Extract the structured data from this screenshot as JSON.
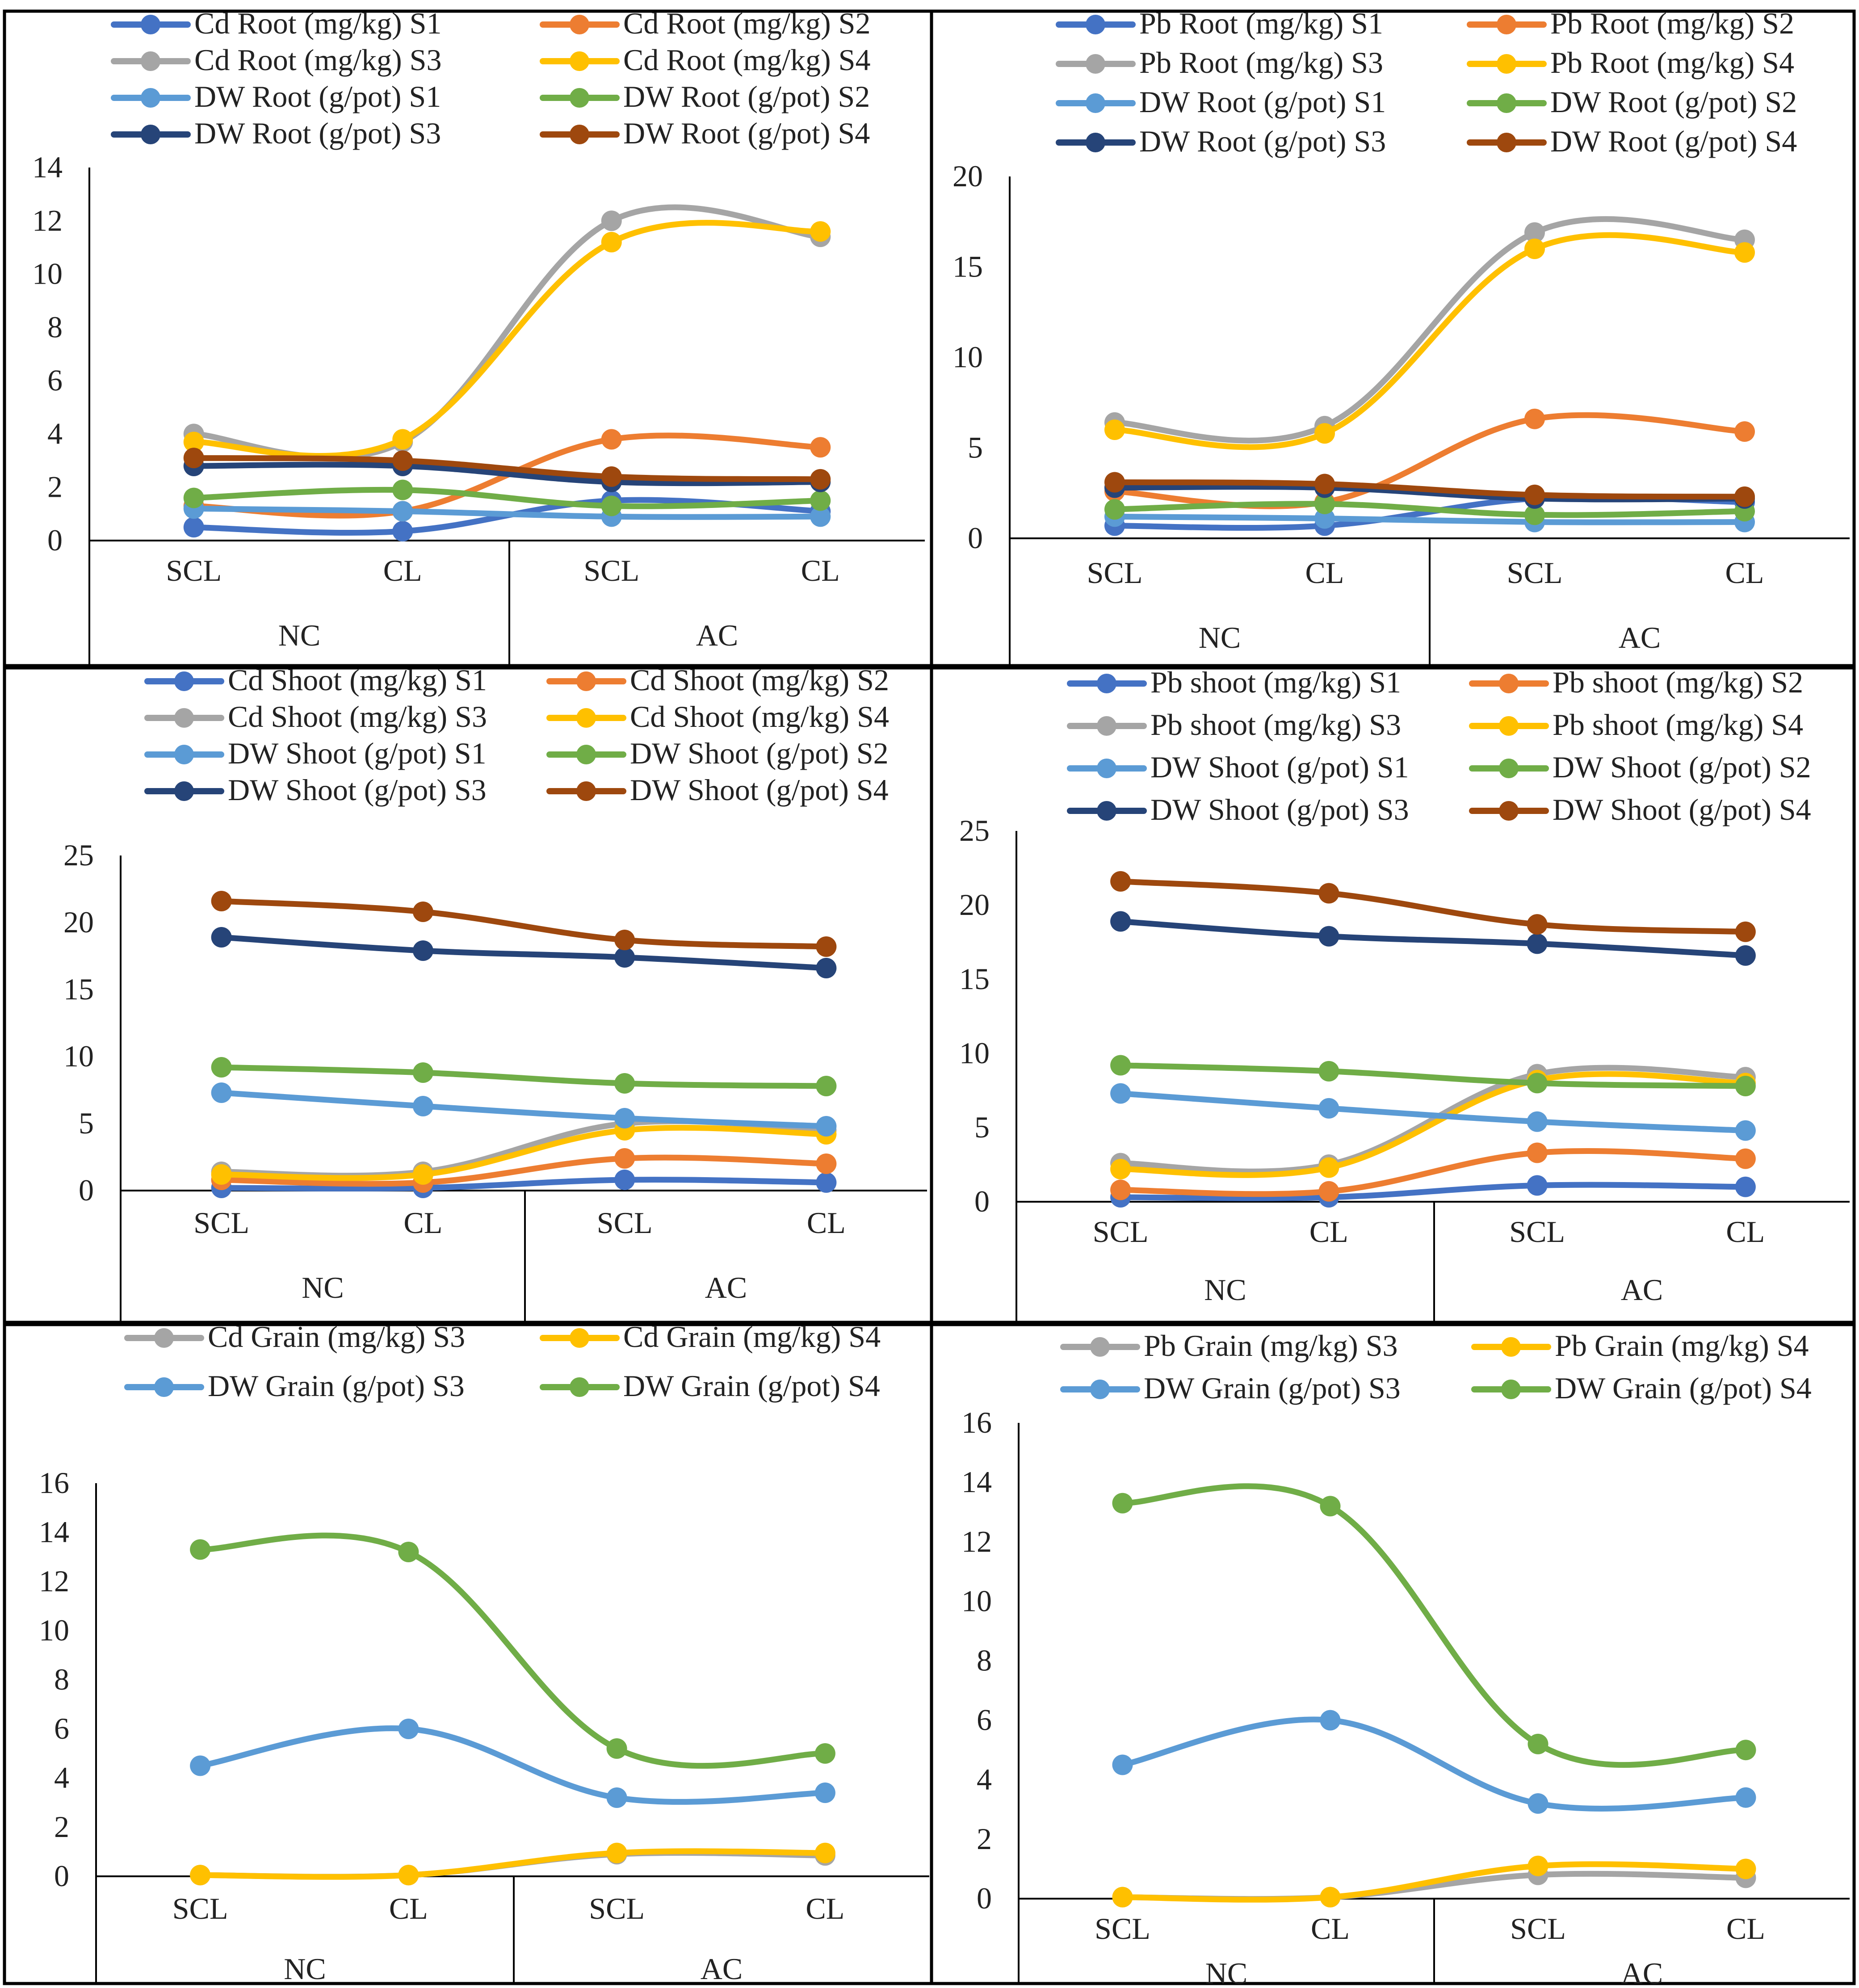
{
  "colors": {
    "S1": "#4472C4",
    "S2": "#ED7D31",
    "S3": "#A5A5A5",
    "S4": "#FFC000",
    "DW_S1": "#5B9BD5",
    "DW_S2": "#70AD47",
    "DW_S3": "#264478",
    "DW_S4": "#9E480E",
    "axis": "#000000",
    "panel_border": "#000000"
  },
  "chart_data": [
    {
      "type": "line",
      "id": "cd-root",
      "categories": [
        "SCL",
        "CL",
        "SCL",
        "CL"
      ],
      "groups": [
        "NC",
        "AC"
      ],
      "y_ticks": [
        0,
        2,
        4,
        6,
        8,
        10,
        12,
        14
      ],
      "ylim": [
        0,
        14
      ],
      "legend_position": "top",
      "series": [
        {
          "name": "Cd Root (mg/kg) S1",
          "color_key": "S1",
          "values": [
            0.5,
            0.35,
            1.5,
            1.1
          ]
        },
        {
          "name": "Cd Root (mg/kg) S2",
          "color_key": "S2",
          "values": [
            1.3,
            1.1,
            3.8,
            3.5
          ]
        },
        {
          "name": "Cd Root (mg/kg) S3",
          "color_key": "S3",
          "values": [
            4.0,
            3.7,
            12.0,
            11.4
          ]
        },
        {
          "name": "Cd Root (mg/kg) S4",
          "color_key": "S4",
          "values": [
            3.7,
            3.8,
            11.2,
            11.6
          ]
        },
        {
          "name": "DW Root (g/pot) S1",
          "color_key": "DW_S1",
          "values": [
            1.2,
            1.1,
            0.9,
            0.9
          ]
        },
        {
          "name": "DW Root (g/pot) S2",
          "color_key": "DW_S2",
          "values": [
            1.6,
            1.9,
            1.3,
            1.5
          ]
        },
        {
          "name": "DW Root (g/pot) S3",
          "color_key": "DW_S3",
          "values": [
            2.8,
            2.8,
            2.2,
            2.2
          ]
        },
        {
          "name": "DW Root (g/pot) S4",
          "color_key": "DW_S4",
          "values": [
            3.1,
            3.0,
            2.4,
            2.3
          ]
        }
      ]
    },
    {
      "type": "line",
      "id": "pb-root",
      "categories": [
        "SCL",
        "CL",
        "SCL",
        "CL"
      ],
      "groups": [
        "NC",
        "AC"
      ],
      "y_ticks": [
        0,
        5,
        10,
        15,
        20
      ],
      "ylim": [
        0,
        20
      ],
      "legend_position": "top",
      "series": [
        {
          "name": "Pb Root (mg/kg) S1",
          "color_key": "S1",
          "values": [
            0.7,
            0.7,
            2.2,
            2.0
          ]
        },
        {
          "name": "Pb Root (mg/kg) S2",
          "color_key": "S2",
          "values": [
            2.6,
            2.0,
            6.6,
            5.9
          ]
        },
        {
          "name": "Pb Root (mg/kg) S3",
          "color_key": "S3",
          "values": [
            6.4,
            6.2,
            16.9,
            16.5
          ]
        },
        {
          "name": "Pb Root (mg/kg) S4",
          "color_key": "S4",
          "values": [
            6.0,
            5.8,
            16.0,
            15.8
          ]
        },
        {
          "name": "DW Root (g/pot) S1",
          "color_key": "DW_S1",
          "values": [
            1.2,
            1.1,
            0.9,
            0.9
          ]
        },
        {
          "name": "DW Root (g/pot) S2",
          "color_key": "DW_S2",
          "values": [
            1.6,
            1.9,
            1.3,
            1.5
          ]
        },
        {
          "name": "DW Root (g/pot) S3",
          "color_key": "DW_S3",
          "values": [
            2.8,
            2.8,
            2.2,
            2.2
          ]
        },
        {
          "name": "DW Root (g/pot) S4",
          "color_key": "DW_S4",
          "values": [
            3.1,
            3.0,
            2.4,
            2.3
          ]
        }
      ]
    },
    {
      "type": "line",
      "id": "cd-shoot",
      "categories": [
        "SCL",
        "CL",
        "SCL",
        "CL"
      ],
      "groups": [
        "NC",
        "AC"
      ],
      "y_ticks": [
        0,
        5,
        10,
        15,
        20,
        25
      ],
      "ylim": [
        0,
        25
      ],
      "legend_position": "top",
      "series": [
        {
          "name": "Cd Shoot (mg/kg) S1",
          "color_key": "S1",
          "values": [
            0.2,
            0.2,
            0.8,
            0.6
          ]
        },
        {
          "name": "Cd Shoot (mg/kg) S2",
          "color_key": "S2",
          "values": [
            0.8,
            0.6,
            2.4,
            2.0
          ]
        },
        {
          "name": "Cd Shoot (mg/kg) S3",
          "color_key": "S3",
          "values": [
            1.4,
            1.4,
            5.0,
            4.5
          ]
        },
        {
          "name": "Cd Shoot (mg/kg) S4",
          "color_key": "S4",
          "values": [
            1.2,
            1.2,
            4.5,
            4.2
          ]
        },
        {
          "name": "DW Shoot (g/pot) S1",
          "color_key": "DW_S1",
          "values": [
            7.3,
            6.3,
            5.4,
            4.8
          ]
        },
        {
          "name": "DW Shoot (g/pot) S2",
          "color_key": "DW_S2",
          "values": [
            9.2,
            8.8,
            8.0,
            7.8
          ]
        },
        {
          "name": "DW Shoot (g/pot) S3",
          "color_key": "DW_S3",
          "values": [
            18.9,
            17.9,
            17.4,
            16.6
          ]
        },
        {
          "name": "DW Shoot (g/pot) S4",
          "color_key": "DW_S4",
          "values": [
            21.6,
            20.8,
            18.7,
            18.2
          ]
        }
      ]
    },
    {
      "type": "line",
      "id": "pb-shoot",
      "categories": [
        "SCL",
        "CL",
        "SCL",
        "CL"
      ],
      "groups": [
        "NC",
        "AC"
      ],
      "y_ticks": [
        0,
        5,
        10,
        15,
        20,
        25
      ],
      "ylim": [
        0,
        25
      ],
      "legend_position": "top",
      "series": [
        {
          "name": "Pb shoot (mg/kg) S1",
          "color_key": "S1",
          "values": [
            0.3,
            0.3,
            1.1,
            1.0
          ]
        },
        {
          "name": "Pb shoot (mg/kg) S2",
          "color_key": "S2",
          "values": [
            0.8,
            0.7,
            3.3,
            2.9
          ]
        },
        {
          "name": "Pb shoot (mg/kg) S3",
          "color_key": "S3",
          "values": [
            2.6,
            2.5,
            8.6,
            8.4
          ]
        },
        {
          "name": "Pb shoot (mg/kg) S4",
          "color_key": "S4",
          "values": [
            2.2,
            2.3,
            8.2,
            8.0
          ]
        },
        {
          "name": "DW Shoot (g/pot) S1",
          "color_key": "DW_S1",
          "values": [
            7.3,
            6.3,
            5.4,
            4.8
          ]
        },
        {
          "name": "DW Shoot (g/pot) S2",
          "color_key": "DW_S2",
          "values": [
            9.2,
            8.8,
            8.0,
            7.8
          ]
        },
        {
          "name": "DW Shoot (g/pot) S3",
          "color_key": "DW_S3",
          "values": [
            18.9,
            17.9,
            17.4,
            16.6
          ]
        },
        {
          "name": "DW Shoot (g/pot) S4",
          "color_key": "DW_S4",
          "values": [
            21.6,
            20.8,
            18.7,
            18.2
          ]
        }
      ]
    },
    {
      "type": "line",
      "id": "cd-grain",
      "categories": [
        "SCL",
        "CL",
        "SCL",
        "CL"
      ],
      "groups": [
        "NC",
        "AC"
      ],
      "y_ticks": [
        0,
        2,
        4,
        6,
        8,
        10,
        12,
        14,
        16
      ],
      "ylim": [
        0,
        16
      ],
      "legend_position": "top",
      "series": [
        {
          "name": "Cd Grain (mg/kg) S3",
          "color_key": "S3",
          "values": [
            0.05,
            0.05,
            0.9,
            0.85
          ]
        },
        {
          "name": "Cd Grain (mg/kg) S4",
          "color_key": "S4",
          "values": [
            0.05,
            0.05,
            0.95,
            0.95
          ]
        },
        {
          "name": "DW Grain (g/pot) S3",
          "color_key": "DW_S1",
          "values": [
            4.5,
            6.0,
            3.2,
            3.4
          ]
        },
        {
          "name": "DW Grain (g/pot) S4",
          "color_key": "DW_S2",
          "values": [
            13.3,
            13.2,
            5.2,
            5.0
          ]
        }
      ]
    },
    {
      "type": "line",
      "id": "pb-grain",
      "categories": [
        "SCL",
        "CL",
        "SCL",
        "CL"
      ],
      "groups": [
        "NC",
        "AC"
      ],
      "y_ticks": [
        0,
        2,
        4,
        6,
        8,
        10,
        12,
        14,
        16
      ],
      "ylim": [
        0,
        16
      ],
      "legend_position": "top",
      "series": [
        {
          "name": "Pb Grain (mg/kg) S3",
          "color_key": "S3",
          "values": [
            0.05,
            0.05,
            0.8,
            0.7
          ]
        },
        {
          "name": "Pb Grain (mg/kg) S4",
          "color_key": "S4",
          "values": [
            0.05,
            0.05,
            1.1,
            1.0
          ]
        },
        {
          "name": "DW Grain (g/pot) S3",
          "color_key": "DW_S1",
          "values": [
            4.5,
            6.0,
            3.2,
            3.4
          ]
        },
        {
          "name": "DW Grain (g/pot) S4",
          "color_key": "DW_S2",
          "values": [
            13.3,
            13.2,
            5.2,
            5.0
          ]
        }
      ]
    }
  ]
}
